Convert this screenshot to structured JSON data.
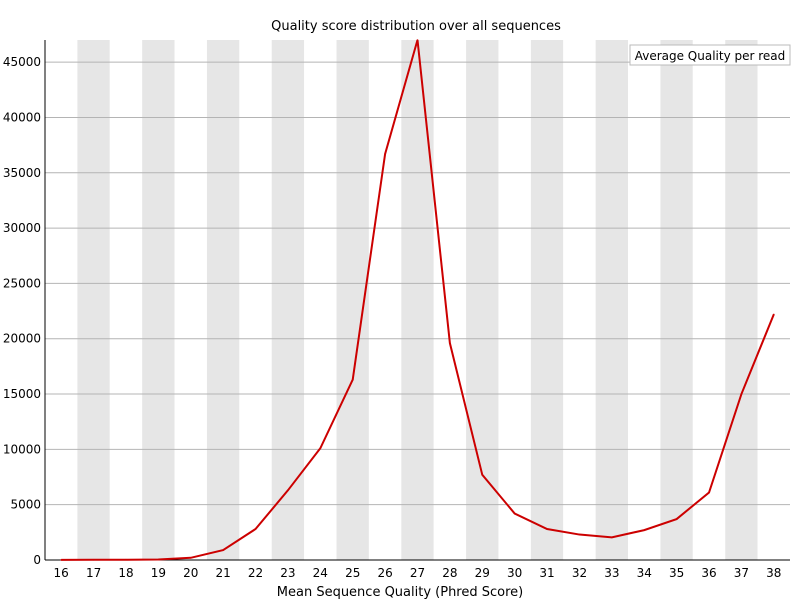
{
  "chart_data": {
    "type": "line",
    "title": "Quality score distribution over all sequences",
    "xlabel": "Mean Sequence Quality (Phred Score)",
    "ylabel": "",
    "categories": [
      "16",
      "17",
      "18",
      "19",
      "20",
      "21",
      "22",
      "23",
      "24",
      "25",
      "26",
      "27",
      "28",
      "29",
      "30",
      "31",
      "32",
      "33",
      "34",
      "35",
      "36",
      "37",
      "38"
    ],
    "series": [
      {
        "name": "Average Quality per read",
        "color": "#cc0000",
        "values": [
          10,
          20,
          25,
          40,
          200,
          900,
          2800,
          6300,
          10100,
          16300,
          36700,
          47000,
          19600,
          7700,
          4200,
          2800,
          2300,
          2050,
          2700,
          3700,
          6100,
          15000,
          22200
        ]
      }
    ],
    "ylim": [
      0,
      47000
    ],
    "yticks": [
      0,
      5000,
      10000,
      15000,
      20000,
      25000,
      30000,
      35000,
      40000,
      45000
    ],
    "grid": true,
    "legend_position": "top-right",
    "band_colors": [
      "#ffffff",
      "#e6e6e6"
    ]
  }
}
